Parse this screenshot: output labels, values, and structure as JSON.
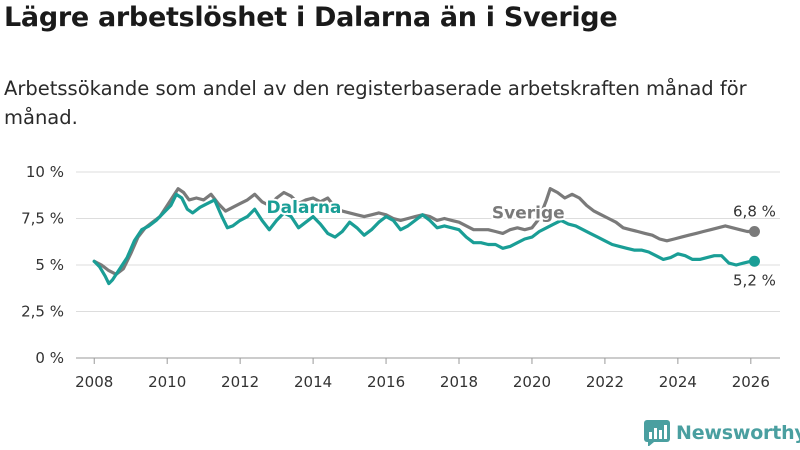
{
  "title": "Lägre arbetslöshet i Dalarna än i Sverige",
  "subtitle": "Arbetssökande som andel av den registerbaserade arbetskraften månad för månad.",
  "brand": {
    "name": "Newsworthy",
    "color": "#4a9fa0",
    "icon": "bar-chart-logo-icon"
  },
  "chart_data": {
    "type": "line",
    "title": "Lägre arbetslöshet i Dalarna än i Sverige",
    "xlabel": "",
    "ylabel": "",
    "xlim": [
      2007.5,
      2026.8
    ],
    "ylim": [
      0,
      10
    ],
    "grid": true,
    "x_ticks": [
      2008,
      2010,
      2012,
      2014,
      2016,
      2018,
      2020,
      2022,
      2024,
      2026
    ],
    "x_tick_labels": [
      "2008",
      "2010",
      "2012",
      "2014",
      "2016",
      "2018",
      "2020",
      "2022",
      "2024",
      "2026"
    ],
    "y_ticks": [
      0,
      2.5,
      5,
      7.5,
      10
    ],
    "y_tick_labels": [
      "0 %",
      "2,5 %",
      "5 %",
      "7,5 %",
      "10 %"
    ],
    "series": [
      {
        "name": "Sverige",
        "color": "#7a7a7a",
        "end_label": "6,8 %",
        "points": [
          [
            2008.0,
            5.2
          ],
          [
            2008.2,
            5.0
          ],
          [
            2008.4,
            4.7
          ],
          [
            2008.6,
            4.5
          ],
          [
            2008.8,
            4.8
          ],
          [
            2009.0,
            5.6
          ],
          [
            2009.2,
            6.5
          ],
          [
            2009.4,
            7.0
          ],
          [
            2009.6,
            7.3
          ],
          [
            2009.8,
            7.6
          ],
          [
            2010.0,
            8.2
          ],
          [
            2010.2,
            8.8
          ],
          [
            2010.3,
            9.1
          ],
          [
            2010.45,
            8.9
          ],
          [
            2010.6,
            8.5
          ],
          [
            2010.8,
            8.6
          ],
          [
            2011.0,
            8.5
          ],
          [
            2011.2,
            8.8
          ],
          [
            2011.4,
            8.3
          ],
          [
            2011.6,
            7.9
          ],
          [
            2011.8,
            8.1
          ],
          [
            2012.0,
            8.3
          ],
          [
            2012.2,
            8.5
          ],
          [
            2012.4,
            8.8
          ],
          [
            2012.6,
            8.4
          ],
          [
            2012.8,
            8.2
          ],
          [
            2013.0,
            8.6
          ],
          [
            2013.2,
            8.9
          ],
          [
            2013.4,
            8.7
          ],
          [
            2013.6,
            8.3
          ],
          [
            2013.8,
            8.5
          ],
          [
            2014.0,
            8.6
          ],
          [
            2014.2,
            8.4
          ],
          [
            2014.4,
            8.6
          ],
          [
            2014.6,
            8.1
          ],
          [
            2014.8,
            7.9
          ],
          [
            2015.0,
            7.8
          ],
          [
            2015.2,
            7.7
          ],
          [
            2015.4,
            7.6
          ],
          [
            2015.6,
            7.7
          ],
          [
            2015.8,
            7.8
          ],
          [
            2016.0,
            7.7
          ],
          [
            2016.2,
            7.5
          ],
          [
            2016.4,
            7.4
          ],
          [
            2016.6,
            7.5
          ],
          [
            2016.8,
            7.6
          ],
          [
            2017.0,
            7.7
          ],
          [
            2017.2,
            7.6
          ],
          [
            2017.4,
            7.4
          ],
          [
            2017.6,
            7.5
          ],
          [
            2017.8,
            7.4
          ],
          [
            2018.0,
            7.3
          ],
          [
            2018.2,
            7.1
          ],
          [
            2018.4,
            6.9
          ],
          [
            2018.6,
            6.9
          ],
          [
            2018.8,
            6.9
          ],
          [
            2019.0,
            6.8
          ],
          [
            2019.2,
            6.7
          ],
          [
            2019.4,
            6.9
          ],
          [
            2019.6,
            7.0
          ],
          [
            2019.8,
            6.9
          ],
          [
            2020.0,
            7.0
          ],
          [
            2020.2,
            7.5
          ],
          [
            2020.4,
            8.5
          ],
          [
            2020.5,
            9.1
          ],
          [
            2020.7,
            8.9
          ],
          [
            2020.9,
            8.6
          ],
          [
            2021.1,
            8.8
          ],
          [
            2021.3,
            8.6
          ],
          [
            2021.5,
            8.2
          ],
          [
            2021.7,
            7.9
          ],
          [
            2021.9,
            7.7
          ],
          [
            2022.1,
            7.5
          ],
          [
            2022.3,
            7.3
          ],
          [
            2022.5,
            7.0
          ],
          [
            2022.7,
            6.9
          ],
          [
            2022.9,
            6.8
          ],
          [
            2023.1,
            6.7
          ],
          [
            2023.3,
            6.6
          ],
          [
            2023.5,
            6.4
          ],
          [
            2023.7,
            6.3
          ],
          [
            2023.9,
            6.4
          ],
          [
            2024.1,
            6.5
          ],
          [
            2024.3,
            6.6
          ],
          [
            2024.5,
            6.7
          ],
          [
            2024.7,
            6.8
          ],
          [
            2024.9,
            6.9
          ],
          [
            2025.1,
            7.0
          ],
          [
            2025.3,
            7.1
          ],
          [
            2025.5,
            7.0
          ],
          [
            2025.7,
            6.9
          ],
          [
            2025.9,
            6.8
          ],
          [
            2026.1,
            6.8
          ]
        ]
      },
      {
        "name": "Dalarna",
        "color": "#1a9e96",
        "end_label": "5,2 %",
        "points": [
          [
            2008.0,
            5.2
          ],
          [
            2008.15,
            4.9
          ],
          [
            2008.3,
            4.4
          ],
          [
            2008.4,
            4.0
          ],
          [
            2008.5,
            4.2
          ],
          [
            2008.7,
            4.8
          ],
          [
            2008.9,
            5.4
          ],
          [
            2009.1,
            6.3
          ],
          [
            2009.3,
            6.9
          ],
          [
            2009.5,
            7.1
          ],
          [
            2009.7,
            7.4
          ],
          [
            2009.9,
            7.8
          ],
          [
            2010.1,
            8.2
          ],
          [
            2010.25,
            8.8
          ],
          [
            2010.4,
            8.6
          ],
          [
            2010.55,
            8.0
          ],
          [
            2010.7,
            7.8
          ],
          [
            2010.9,
            8.1
          ],
          [
            2011.1,
            8.3
          ],
          [
            2011.3,
            8.5
          ],
          [
            2011.5,
            7.6
          ],
          [
            2011.65,
            7.0
          ],
          [
            2011.8,
            7.1
          ],
          [
            2012.0,
            7.4
          ],
          [
            2012.2,
            7.6
          ],
          [
            2012.4,
            8.0
          ],
          [
            2012.6,
            7.4
          ],
          [
            2012.8,
            6.9
          ],
          [
            2013.0,
            7.4
          ],
          [
            2013.2,
            7.8
          ],
          [
            2013.4,
            7.6
          ],
          [
            2013.6,
            7.0
          ],
          [
            2013.8,
            7.3
          ],
          [
            2014.0,
            7.6
          ],
          [
            2014.2,
            7.2
          ],
          [
            2014.4,
            6.7
          ],
          [
            2014.6,
            6.5
          ],
          [
            2014.8,
            6.8
          ],
          [
            2015.0,
            7.3
          ],
          [
            2015.2,
            7.0
          ],
          [
            2015.4,
            6.6
          ],
          [
            2015.6,
            6.9
          ],
          [
            2015.8,
            7.3
          ],
          [
            2016.0,
            7.6
          ],
          [
            2016.2,
            7.4
          ],
          [
            2016.4,
            6.9
          ],
          [
            2016.6,
            7.1
          ],
          [
            2016.8,
            7.4
          ],
          [
            2017.0,
            7.7
          ],
          [
            2017.2,
            7.4
          ],
          [
            2017.4,
            7.0
          ],
          [
            2017.6,
            7.1
          ],
          [
            2017.8,
            7.0
          ],
          [
            2018.0,
            6.9
          ],
          [
            2018.2,
            6.5
          ],
          [
            2018.4,
            6.2
          ],
          [
            2018.6,
            6.2
          ],
          [
            2018.8,
            6.1
          ],
          [
            2019.0,
            6.1
          ],
          [
            2019.2,
            5.9
          ],
          [
            2019.4,
            6.0
          ],
          [
            2019.6,
            6.2
          ],
          [
            2019.8,
            6.4
          ],
          [
            2020.0,
            6.5
          ],
          [
            2020.2,
            6.8
          ],
          [
            2020.4,
            7.0
          ],
          [
            2020.6,
            7.2
          ],
          [
            2020.8,
            7.4
          ],
          [
            2021.0,
            7.2
          ],
          [
            2021.2,
            7.1
          ],
          [
            2021.4,
            6.9
          ],
          [
            2021.6,
            6.7
          ],
          [
            2021.8,
            6.5
          ],
          [
            2022.0,
            6.3
          ],
          [
            2022.2,
            6.1
          ],
          [
            2022.4,
            6.0
          ],
          [
            2022.6,
            5.9
          ],
          [
            2022.8,
            5.8
          ],
          [
            2023.0,
            5.8
          ],
          [
            2023.2,
            5.7
          ],
          [
            2023.4,
            5.5
          ],
          [
            2023.6,
            5.3
          ],
          [
            2023.8,
            5.4
          ],
          [
            2024.0,
            5.6
          ],
          [
            2024.2,
            5.5
          ],
          [
            2024.4,
            5.3
          ],
          [
            2024.6,
            5.3
          ],
          [
            2024.8,
            5.4
          ],
          [
            2025.0,
            5.5
          ],
          [
            2025.2,
            5.5
          ],
          [
            2025.4,
            5.1
          ],
          [
            2025.6,
            5.0
          ],
          [
            2025.8,
            5.1
          ],
          [
            2026.0,
            5.2
          ],
          [
            2026.1,
            5.2
          ]
        ]
      }
    ],
    "annotations": [
      {
        "text": "Dalarna",
        "series": "Dalarna",
        "x": 2013.75,
        "y": 7.8
      },
      {
        "text": "Sverige",
        "series": "Sverige",
        "x": 2019.9,
        "y": 7.5
      }
    ]
  }
}
